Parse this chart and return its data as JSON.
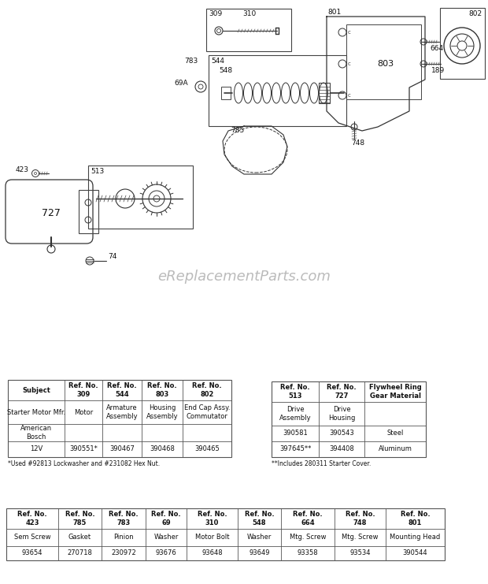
{
  "watermark": "eReplacementParts.com",
  "bg_color": "#ffffff",
  "table1_left": {
    "headers": [
      "Subject",
      "Ref. No.\n309",
      "Ref. No.\n544",
      "Ref. No.\n803",
      "Ref. No.\n802"
    ],
    "row1_label": "Starter Motor Mfr.",
    "row1_cols": [
      "Motor",
      "Armature\nAssembly",
      "Housing\nAssembly",
      "End Cap Assy.\nCommutator"
    ],
    "row2_label": "American\nBosch",
    "row2_cols": [
      "",
      "",
      "",
      ""
    ],
    "row3_label": "12V",
    "row3_cols": [
      "390551*",
      "390467",
      "390468",
      "390465"
    ],
    "footnote": "*Used #92813 Lockwasher and #231082 Hex Nut."
  },
  "table1_right": {
    "headers": [
      "Ref. No.\n513",
      "Ref. No.\n727",
      "Flywheel Ring\nGear Material"
    ],
    "row1_cols": [
      "Drive\nAssembly",
      "Drive\nHousing",
      ""
    ],
    "row2_cols": [
      "390581",
      "390543",
      "Steel"
    ],
    "row3_cols": [
      "397645**",
      "394408",
      "Aluminum"
    ],
    "footnote": "**Includes 280311 Starter Cover."
  },
  "table2": {
    "headers": [
      "Ref. No.\n423",
      "Ref. No.\n785",
      "Ref. No.\n783",
      "Ref. No.\n69",
      "Ref. No.\n310",
      "Ref. No.\n548",
      "Ref. No.\n664",
      "Ref. No.\n748",
      "Ref. No.\n801"
    ],
    "row1": [
      "Sem Screw",
      "Gasket",
      "Pinion",
      "Washer",
      "Motor Bolt",
      "Washer",
      "Mtg. Screw",
      "Mtg. Screw",
      "Mounting Head"
    ],
    "row2": [
      "93654",
      "270718",
      "230972",
      "93676",
      "93648",
      "93649",
      "93358",
      "93534",
      "390544"
    ]
  }
}
